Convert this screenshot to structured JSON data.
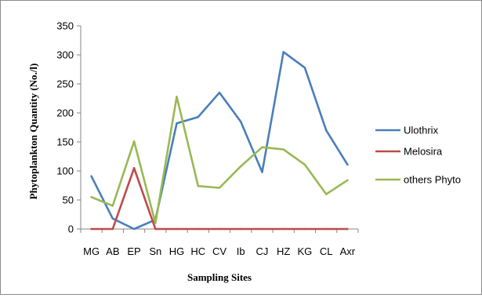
{
  "chart_data": {
    "type": "line",
    "title": "",
    "xlabel": "Sampling Sites",
    "ylabel": "Phytoplankton Quantity (No./l)",
    "categories": [
      "MG",
      "AB",
      "EP",
      "Sn",
      "HG",
      "HC",
      "CV",
      "Ib",
      "CJ",
      "HZ",
      "KG",
      "CL",
      "Axr"
    ],
    "ylim": [
      0,
      350
    ],
    "yticks": [
      0,
      50,
      100,
      150,
      200,
      250,
      300,
      350
    ],
    "grid": false,
    "legend_position": "right",
    "series": [
      {
        "name": "Ulothrix",
        "color": "#4a7ebb",
        "values": [
          91,
          18,
          0,
          16,
          182,
          193,
          235,
          185,
          98,
          305,
          278,
          170,
          111
        ]
      },
      {
        "name": "Melosira",
        "color": "#be4b48",
        "values": [
          0,
          0,
          105,
          0,
          0,
          0,
          0,
          0,
          0,
          0,
          0,
          0,
          0
        ]
      },
      {
        "name": "others Phyto",
        "color": "#98b954",
        "values": [
          55,
          40,
          151,
          10,
          228,
          74,
          71,
          108,
          141,
          137,
          111,
          60,
          84
        ]
      }
    ]
  }
}
